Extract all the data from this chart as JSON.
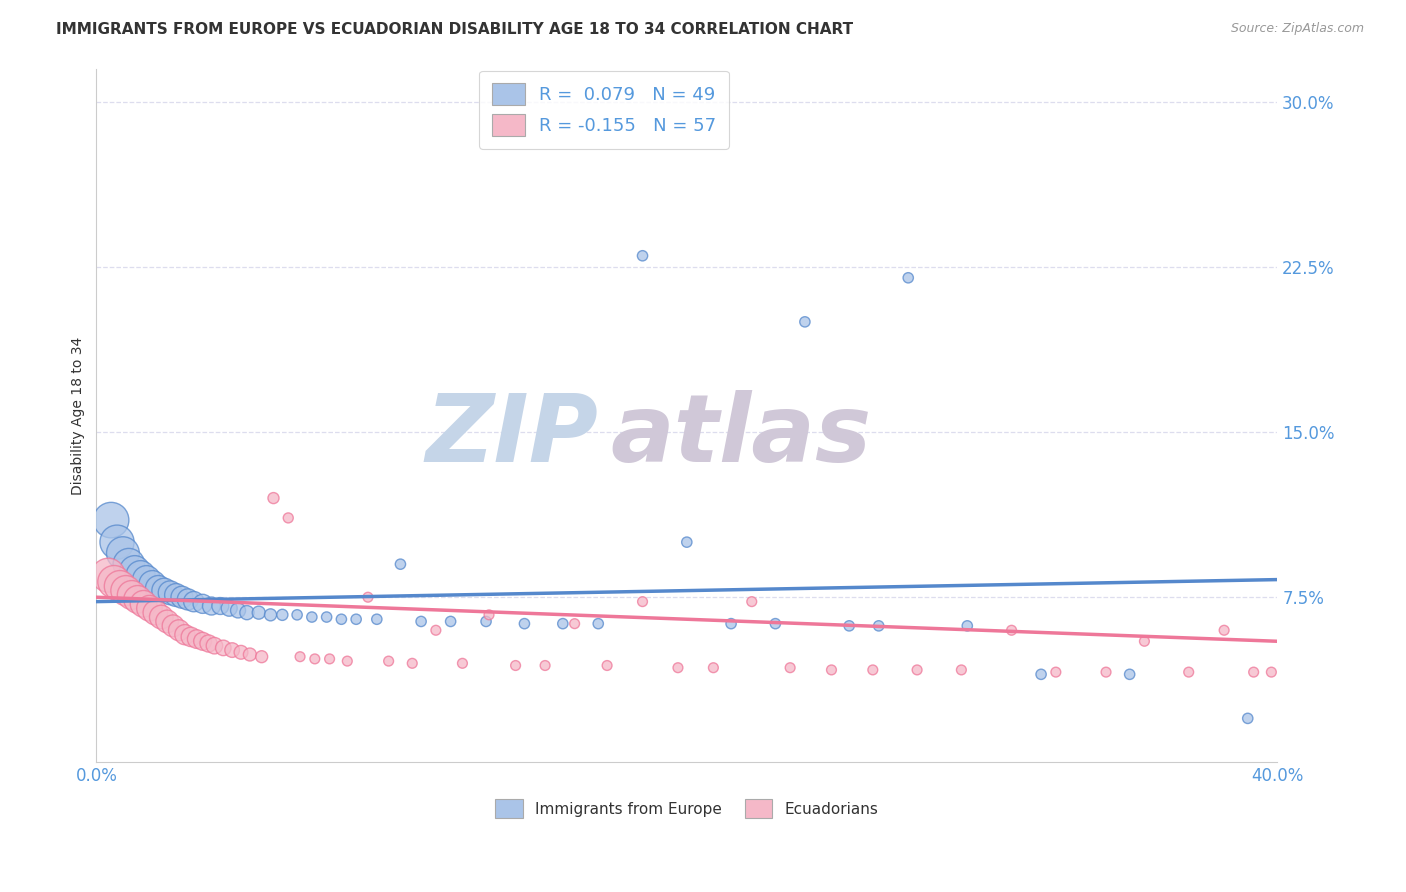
{
  "title": "IMMIGRANTS FROM EUROPE VS ECUADORIAN DISABILITY AGE 18 TO 34 CORRELATION CHART",
  "source": "Source: ZipAtlas.com",
  "ylabel": "Disability Age 18 to 34",
  "ytick_labels": [
    "7.5%",
    "15.0%",
    "22.5%",
    "30.0%"
  ],
  "ytick_values": [
    0.075,
    0.15,
    0.225,
    0.3
  ],
  "xlim": [
    0.0,
    0.4
  ],
  "ylim": [
    0.0,
    0.315
  ],
  "legend_label_bottom": [
    "Immigrants from Europe",
    "Ecuadorians"
  ],
  "blue_color": "#5588cc",
  "pink_color": "#ee7799",
  "blue_fill": "#aac4e8",
  "pink_fill": "#f5b8c8",
  "watermark_zip": "ZIP",
  "watermark_atlas": "atlas",
  "blue_scatter": [
    [
      0.005,
      0.11
    ],
    [
      0.007,
      0.1
    ],
    [
      0.009,
      0.095
    ],
    [
      0.011,
      0.09
    ],
    [
      0.013,
      0.087
    ],
    [
      0.015,
      0.085
    ],
    [
      0.017,
      0.083
    ],
    [
      0.019,
      0.081
    ],
    [
      0.021,
      0.079
    ],
    [
      0.023,
      0.078
    ],
    [
      0.025,
      0.077
    ],
    [
      0.027,
      0.076
    ],
    [
      0.029,
      0.075
    ],
    [
      0.031,
      0.074
    ],
    [
      0.033,
      0.073
    ],
    [
      0.036,
      0.072
    ],
    [
      0.039,
      0.071
    ],
    [
      0.042,
      0.071
    ],
    [
      0.045,
      0.07
    ],
    [
      0.048,
      0.069
    ],
    [
      0.051,
      0.068
    ],
    [
      0.055,
      0.068
    ],
    [
      0.059,
      0.067
    ],
    [
      0.063,
      0.067
    ],
    [
      0.068,
      0.067
    ],
    [
      0.073,
      0.066
    ],
    [
      0.078,
      0.066
    ],
    [
      0.083,
      0.065
    ],
    [
      0.088,
      0.065
    ],
    [
      0.095,
      0.065
    ],
    [
      0.103,
      0.09
    ],
    [
      0.11,
      0.064
    ],
    [
      0.12,
      0.064
    ],
    [
      0.132,
      0.064
    ],
    [
      0.145,
      0.063
    ],
    [
      0.158,
      0.063
    ],
    [
      0.17,
      0.063
    ],
    [
      0.185,
      0.23
    ],
    [
      0.2,
      0.1
    ],
    [
      0.215,
      0.063
    ],
    [
      0.23,
      0.063
    ],
    [
      0.24,
      0.2
    ],
    [
      0.255,
      0.062
    ],
    [
      0.265,
      0.062
    ],
    [
      0.275,
      0.22
    ],
    [
      0.295,
      0.062
    ],
    [
      0.32,
      0.04
    ],
    [
      0.35,
      0.04
    ],
    [
      0.39,
      0.02
    ]
  ],
  "pink_scatter": [
    [
      0.004,
      0.085
    ],
    [
      0.006,
      0.082
    ],
    [
      0.008,
      0.08
    ],
    [
      0.01,
      0.078
    ],
    [
      0.012,
      0.076
    ],
    [
      0.014,
      0.074
    ],
    [
      0.016,
      0.072
    ],
    [
      0.018,
      0.07
    ],
    [
      0.02,
      0.068
    ],
    [
      0.022,
      0.066
    ],
    [
      0.024,
      0.064
    ],
    [
      0.026,
      0.062
    ],
    [
      0.028,
      0.06
    ],
    [
      0.03,
      0.058
    ],
    [
      0.032,
      0.057
    ],
    [
      0.034,
      0.056
    ],
    [
      0.036,
      0.055
    ],
    [
      0.038,
      0.054
    ],
    [
      0.04,
      0.053
    ],
    [
      0.043,
      0.052
    ],
    [
      0.046,
      0.051
    ],
    [
      0.049,
      0.05
    ],
    [
      0.052,
      0.049
    ],
    [
      0.056,
      0.048
    ],
    [
      0.06,
      0.12
    ],
    [
      0.065,
      0.111
    ],
    [
      0.069,
      0.048
    ],
    [
      0.074,
      0.047
    ],
    [
      0.079,
      0.047
    ],
    [
      0.085,
      0.046
    ],
    [
      0.092,
      0.075
    ],
    [
      0.099,
      0.046
    ],
    [
      0.107,
      0.045
    ],
    [
      0.115,
      0.06
    ],
    [
      0.124,
      0.045
    ],
    [
      0.133,
      0.067
    ],
    [
      0.142,
      0.044
    ],
    [
      0.152,
      0.044
    ],
    [
      0.162,
      0.063
    ],
    [
      0.173,
      0.044
    ],
    [
      0.185,
      0.073
    ],
    [
      0.197,
      0.043
    ],
    [
      0.209,
      0.043
    ],
    [
      0.222,
      0.073
    ],
    [
      0.235,
      0.043
    ],
    [
      0.249,
      0.042
    ],
    [
      0.263,
      0.042
    ],
    [
      0.278,
      0.042
    ],
    [
      0.293,
      0.042
    ],
    [
      0.31,
      0.06
    ],
    [
      0.325,
      0.041
    ],
    [
      0.342,
      0.041
    ],
    [
      0.355,
      0.055
    ],
    [
      0.37,
      0.041
    ],
    [
      0.382,
      0.06
    ],
    [
      0.392,
      0.041
    ],
    [
      0.398,
      0.041
    ]
  ],
  "blue_line_x": [
    0.0,
    0.4
  ],
  "blue_line_y": [
    0.073,
    0.083
  ],
  "pink_line_x": [
    0.0,
    0.4
  ],
  "pink_line_y": [
    0.075,
    0.055
  ],
  "background_color": "#ffffff",
  "grid_color": "#ddddee",
  "title_color": "#333333",
  "axis_color": "#5599dd"
}
